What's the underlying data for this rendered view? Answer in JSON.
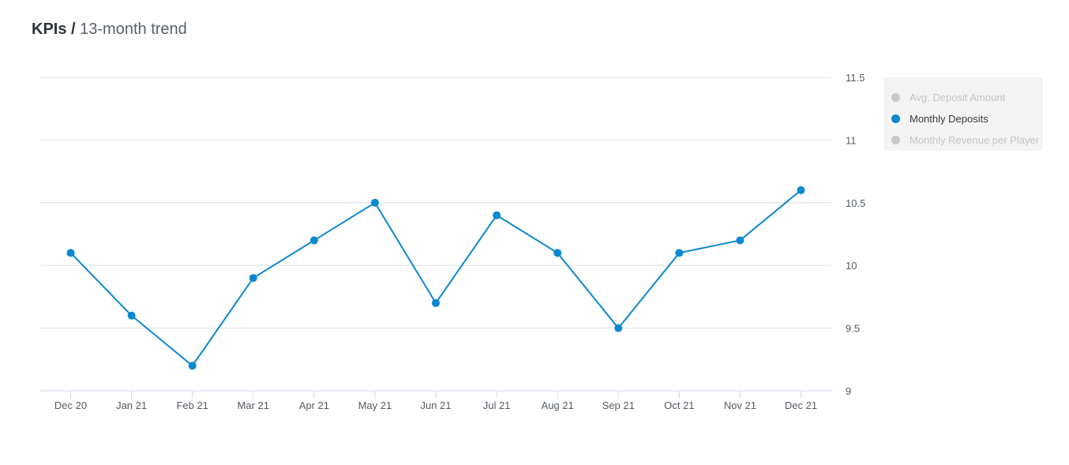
{
  "header": {
    "title_bold": "KPIs /",
    "title_rest": "13-month trend"
  },
  "legend": {
    "items": [
      {
        "label": "Avg. Deposit Amount",
        "active": false
      },
      {
        "label": "Monthly Deposits",
        "active": true
      },
      {
        "label": "Monthly Revenue per Player",
        "active": false
      }
    ]
  },
  "colors": {
    "series": "#0a88d0",
    "grid": "#dcdfe3",
    "axis": "#ccd6eb",
    "tick_text": "#555b63"
  },
  "chart_data": {
    "type": "line",
    "title": "",
    "xlabel": "",
    "ylabel": "",
    "categories": [
      "Dec 20",
      "Jan 21",
      "Feb 21",
      "Mar 21",
      "Apr 21",
      "May 21",
      "Jun 21",
      "Jul 21",
      "Aug 21",
      "Sep 21",
      "Oct 21",
      "Nov 21",
      "Dec 21"
    ],
    "series": [
      {
        "name": "Monthly Deposits",
        "values": [
          10.1,
          9.6,
          9.2,
          9.9,
          10.2,
          10.5,
          9.7,
          10.4,
          10.1,
          9.5,
          10.1,
          10.2,
          10.6
        ]
      }
    ],
    "ylim": [
      9,
      11.5
    ],
    "yticks": [
      9,
      9.5,
      10,
      10.5,
      11,
      11.5
    ],
    "ytick_labels": [
      "9",
      "9.5",
      "10",
      "10.5",
      "11",
      "11.5"
    ],
    "y_axis_side": "right",
    "grid": true,
    "legend_position": "right"
  }
}
